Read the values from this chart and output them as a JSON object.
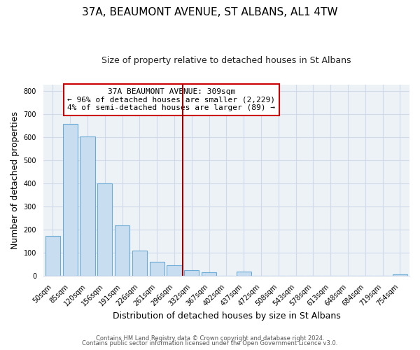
{
  "title": "37A, BEAUMONT AVENUE, ST ALBANS, AL1 4TW",
  "subtitle": "Size of property relative to detached houses in St Albans",
  "xlabel": "Distribution of detached houses by size in St Albans",
  "ylabel": "Number of detached properties",
  "bar_labels": [
    "50sqm",
    "85sqm",
    "120sqm",
    "156sqm",
    "191sqm",
    "226sqm",
    "261sqm",
    "296sqm",
    "332sqm",
    "367sqm",
    "402sqm",
    "437sqm",
    "472sqm",
    "508sqm",
    "543sqm",
    "578sqm",
    "613sqm",
    "648sqm",
    "684sqm",
    "719sqm",
    "754sqm"
  ],
  "bar_heights": [
    175,
    660,
    605,
    400,
    218,
    110,
    63,
    45,
    25,
    15,
    0,
    18,
    0,
    0,
    0,
    0,
    0,
    0,
    0,
    0,
    7
  ],
  "bar_color": "#c8ddf0",
  "bar_edge_color": "#6aaad4",
  "annotation_title": "37A BEAUMONT AVENUE: 309sqm",
  "annotation_line1": "← 96% of detached houses are smaller (2,229)",
  "annotation_line2": "4% of semi-detached houses are larger (89) →",
  "vline_color": "#990000",
  "vline_x": 7.5,
  "ylim": [
    0,
    830
  ],
  "yticks": [
    0,
    100,
    200,
    300,
    400,
    500,
    600,
    700,
    800
  ],
  "footer_line1": "Contains HM Land Registry data © Crown copyright and database right 2024.",
  "footer_line2": "Contains public sector information licensed under the Open Government Licence v3.0.",
  "title_fontsize": 11,
  "subtitle_fontsize": 9,
  "axis_label_fontsize": 9,
  "tick_fontsize": 7,
  "bg_color": "#edf2f7",
  "grid_color": "#d0dae8",
  "ann_fontsize": 8
}
